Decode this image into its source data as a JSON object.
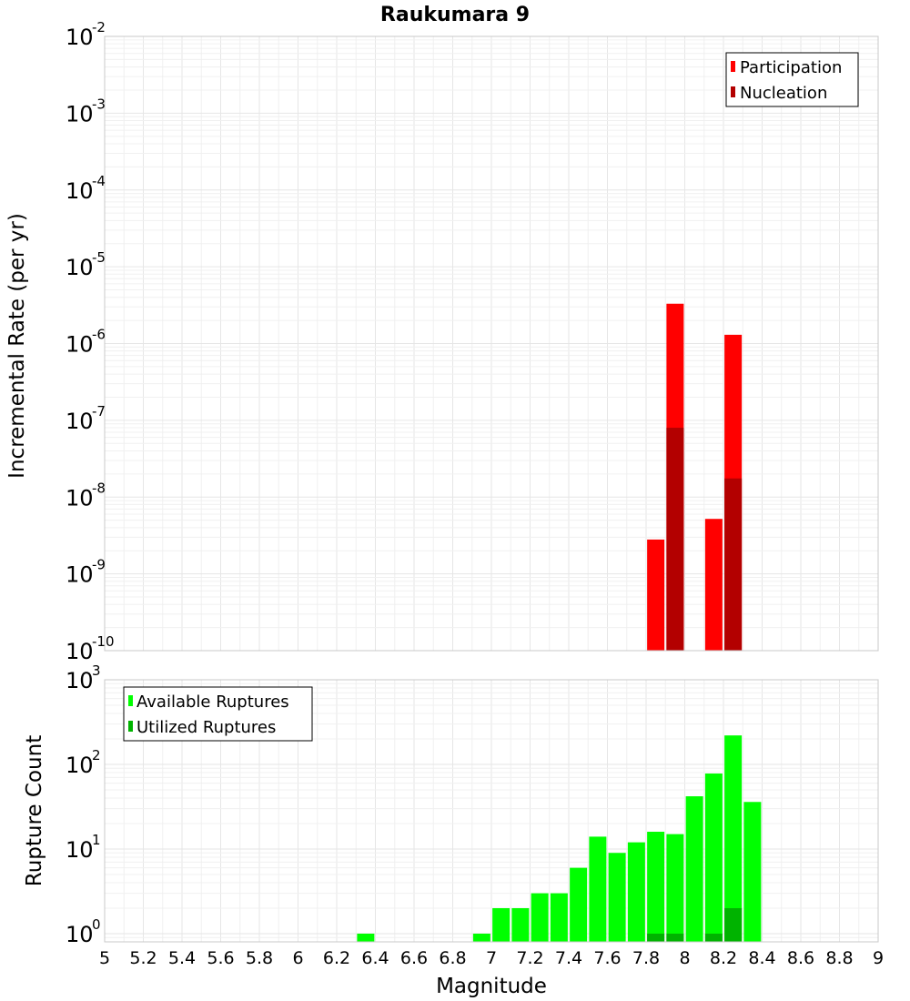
{
  "chart_data": [
    {
      "type": "bar",
      "title": "Raukumara 9",
      "ylabel": "Incremental Rate (per yr)",
      "xlabel": "",
      "xlim": [
        5,
        9
      ],
      "ylim": [
        1e-10,
        0.01
      ],
      "yscale": "log",
      "grid": true,
      "legend_position": "top-right",
      "series": [
        {
          "name": "Participation",
          "color": "#ff0000",
          "x": [
            7.85,
            7.95,
            8.15,
            8.25
          ],
          "values": [
            2.8e-09,
            3.3e-06,
            5.2e-09,
            1.3e-06
          ]
        },
        {
          "name": "Nucleation",
          "color": "#b30000",
          "x": [
            7.95,
            8.25
          ],
          "values": [
            8e-08,
            1.75e-08
          ]
        }
      ]
    },
    {
      "type": "bar",
      "title": "",
      "ylabel": "Rupture Count",
      "xlabel": "Magnitude",
      "xlim": [
        5,
        9
      ],
      "ylim": [
        0.8,
        1000
      ],
      "yscale": "log",
      "grid": true,
      "legend_position": "top-left",
      "series": [
        {
          "name": "Available Ruptures",
          "color": "#00ff00",
          "x": [
            6.35,
            6.95,
            7.05,
            7.15,
            7.25,
            7.35,
            7.45,
            7.55,
            7.65,
            7.75,
            7.85,
            7.95,
            8.05,
            8.15,
            8.25,
            8.35
          ],
          "values": [
            1,
            1,
            2,
            2,
            3,
            3,
            6,
            14,
            9,
            12,
            16,
            15,
            42,
            78,
            220,
            36
          ]
        },
        {
          "name": "Utilized Ruptures",
          "color": "#00b300",
          "x": [
            7.85,
            7.95,
            8.15,
            8.25
          ],
          "values": [
            1,
            1,
            1,
            2
          ]
        }
      ]
    }
  ],
  "x_ticks": [
    "5",
    "5.2",
    "5.4",
    "5.6",
    "5.8",
    "6",
    "6.2",
    "6.4",
    "6.6",
    "6.8",
    "7",
    "7.2",
    "7.4",
    "7.6",
    "7.8",
    "8",
    "8.2",
    "8.4",
    "8.6",
    "8.8",
    "9"
  ],
  "top_y_ticks": [
    {
      "base": "10",
      "exp": "-2"
    },
    {
      "base": "10",
      "exp": "-3"
    },
    {
      "base": "10",
      "exp": "-4"
    },
    {
      "base": "10",
      "exp": "-5"
    },
    {
      "base": "10",
      "exp": "-6"
    },
    {
      "base": "10",
      "exp": "-7"
    },
    {
      "base": "10",
      "exp": "-8"
    },
    {
      "base": "10",
      "exp": "-9"
    },
    {
      "base": "10",
      "exp": "-10"
    }
  ],
  "bottom_y_ticks": [
    {
      "base": "10",
      "exp": "3"
    },
    {
      "base": "10",
      "exp": "2"
    },
    {
      "base": "10",
      "exp": "1"
    },
    {
      "base": "10",
      "exp": "0"
    }
  ]
}
